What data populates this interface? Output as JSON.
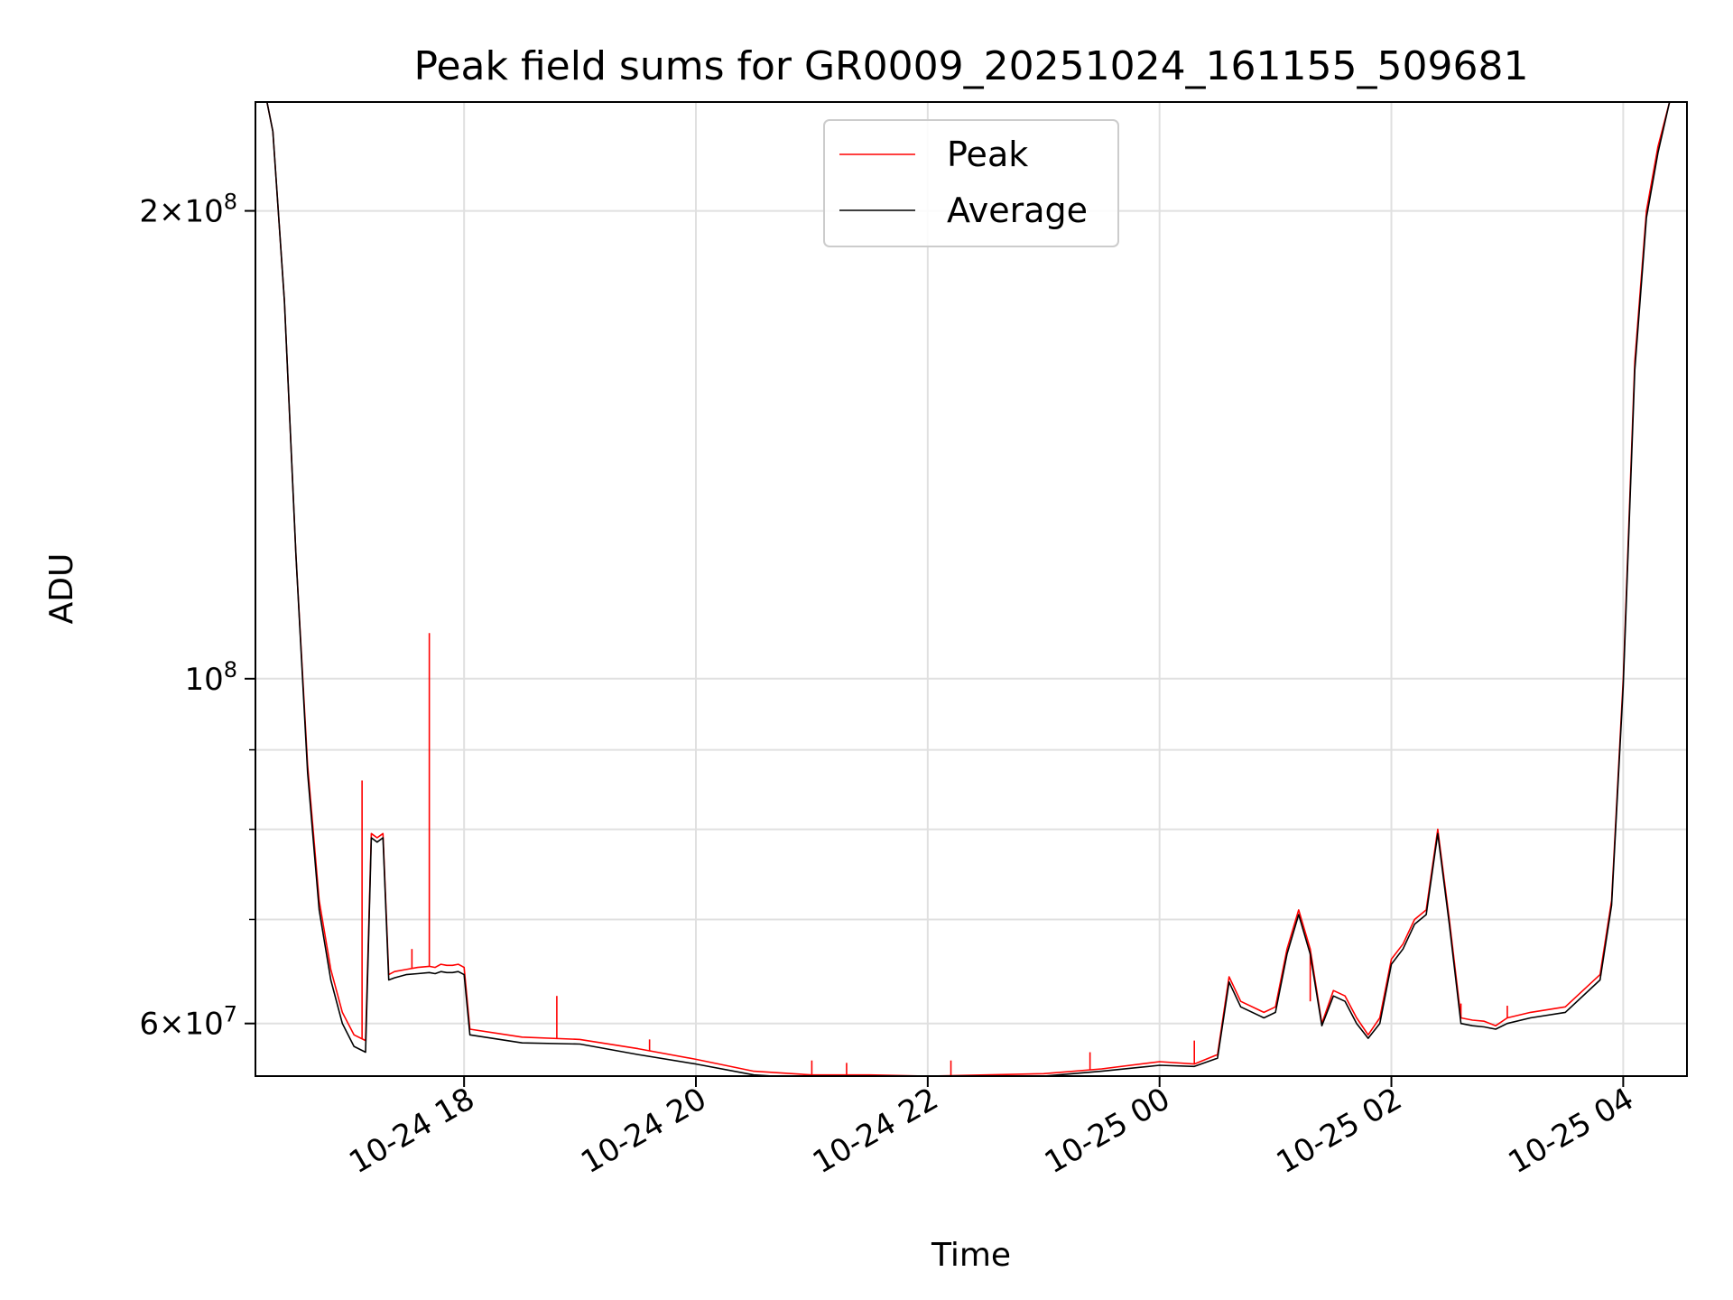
{
  "chart_data": {
    "type": "line",
    "title": "Peak field sums for GR0009_20251024_161155_509681",
    "xlabel": "Time",
    "ylabel": "ADU",
    "yscale": "log",
    "ylim": [
      55500000,
      235000000
    ],
    "x_unit": "hours since 2025-10-24 16:00",
    "xlim": [
      0.2,
      12.55
    ],
    "grid": true,
    "legend_position": "upper center",
    "x_ticks": [
      {
        "value": 2,
        "label": "10-24 18"
      },
      {
        "value": 4,
        "label": "10-24 20"
      },
      {
        "value": 6,
        "label": "10-24 22"
      },
      {
        "value": 8,
        "label": "10-25 00"
      },
      {
        "value": 10,
        "label": "10-25 02"
      },
      {
        "value": 12,
        "label": "10-25 04"
      }
    ],
    "y_major_ticks": [
      {
        "value": 60000000,
        "mantissa": "6",
        "exp": "7"
      },
      {
        "value": 100000000,
        "mantissa": "",
        "exp": "8"
      },
      {
        "value": 200000000,
        "mantissa": "2",
        "exp": "8"
      }
    ],
    "y_minor_ticks": [
      70000000,
      80000000,
      90000000
    ],
    "series": [
      {
        "name": "Peak",
        "color": "#ff0000",
        "x": [
          0.2,
          0.3,
          0.35,
          0.45,
          0.55,
          0.65,
          0.75,
          0.85,
          0.95,
          1.05,
          1.15,
          1.2,
          1.25,
          1.3,
          1.35,
          1.4,
          1.5,
          1.6,
          1.7,
          1.75,
          1.8,
          1.85,
          1.9,
          1.95,
          2.0,
          2.05,
          2.5,
          3.0,
          3.5,
          4.0,
          4.5,
          5.0,
          5.5,
          6.0,
          6.5,
          7.0,
          7.5,
          8.0,
          8.3,
          8.5,
          8.6,
          8.7,
          8.9,
          9.0,
          9.1,
          9.2,
          9.3,
          9.4,
          9.5,
          9.6,
          9.7,
          9.8,
          9.9,
          10.0,
          10.1,
          10.2,
          10.3,
          10.4,
          10.5,
          10.6,
          10.7,
          10.8,
          10.9,
          11.0,
          11.2,
          11.5,
          11.8,
          11.9,
          12.0,
          12.1,
          12.2,
          12.3,
          12.4,
          12.55
        ],
        "y": [
          235000000,
          235000000,
          225000000,
          175000000,
          120000000,
          88000000,
          72000000,
          65000000,
          61000000,
          59000000,
          58500000,
          79500000,
          79000000,
          79500000,
          64500000,
          64800000,
          65000000,
          65200000,
          65300000,
          65200000,
          65500000,
          65400000,
          65400000,
          65500000,
          65200000,
          59500000,
          58800000,
          58600000,
          57800000,
          56900000,
          55900000,
          55600000,
          55600000,
          55500000,
          55600000,
          55700000,
          56100000,
          56700000,
          56500000,
          57300000,
          64300000,
          62000000,
          61000000,
          61500000,
          67000000,
          71000000,
          67000000,
          60000000,
          63000000,
          62500000,
          60500000,
          59000000,
          60500000,
          66000000,
          67500000,
          70000000,
          71000000,
          80000000,
          70000000,
          60500000,
          60300000,
          60200000,
          59800000,
          60500000,
          61000000,
          61500000,
          64500000,
          72000000,
          100000000,
          160000000,
          200000000,
          220000000,
          235000000,
          235000000
        ],
        "spikes": [
          {
            "x": 1.12,
            "y": 86000000
          },
          {
            "x": 1.7,
            "y": 107000000
          },
          {
            "x": 1.55,
            "y": 67000000
          },
          {
            "x": 2.8,
            "y": 62500000
          },
          {
            "x": 3.6,
            "y": 58600000
          },
          {
            "x": 5.0,
            "y": 56800000
          },
          {
            "x": 5.3,
            "y": 56600000
          },
          {
            "x": 6.2,
            "y": 56800000
          },
          {
            "x": 7.4,
            "y": 57500000
          },
          {
            "x": 8.3,
            "y": 58500000
          },
          {
            "x": 9.3,
            "y": 62000000
          },
          {
            "x": 10.6,
            "y": 61800000
          },
          {
            "x": 11.0,
            "y": 61600000
          }
        ]
      },
      {
        "name": "Average",
        "color": "#000000",
        "x": [
          0.2,
          0.3,
          0.35,
          0.45,
          0.55,
          0.65,
          0.75,
          0.85,
          0.95,
          1.05,
          1.15,
          1.2,
          1.25,
          1.3,
          1.35,
          1.4,
          1.5,
          1.6,
          1.7,
          1.75,
          1.8,
          1.85,
          1.9,
          1.95,
          2.0,
          2.05,
          2.5,
          3.0,
          3.5,
          4.0,
          4.5,
          5.0,
          5.5,
          6.0,
          6.5,
          7.0,
          7.5,
          8.0,
          8.3,
          8.5,
          8.6,
          8.7,
          8.9,
          9.0,
          9.1,
          9.2,
          9.3,
          9.4,
          9.5,
          9.6,
          9.7,
          9.8,
          9.9,
          10.0,
          10.1,
          10.2,
          10.3,
          10.4,
          10.5,
          10.6,
          10.7,
          10.8,
          10.9,
          11.0,
          11.2,
          11.5,
          11.8,
          11.9,
          12.0,
          12.1,
          12.2,
          12.3,
          12.4,
          12.55
        ],
        "y": [
          235000000,
          235000000,
          225000000,
          175000000,
          120000000,
          87000000,
          71000000,
          64000000,
          60000000,
          58000000,
          57500000,
          79000000,
          78500000,
          79000000,
          64000000,
          64200000,
          64500000,
          64600000,
          64700000,
          64600000,
          64800000,
          64700000,
          64700000,
          64800000,
          64500000,
          59000000,
          58300000,
          58200000,
          57300000,
          56500000,
          55600000,
          55300000,
          55300000,
          55300000,
          55400000,
          55500000,
          55900000,
          56400000,
          56300000,
          57000000,
          63800000,
          61500000,
          60500000,
          61000000,
          66500000,
          70500000,
          66500000,
          59800000,
          62500000,
          62000000,
          60000000,
          58700000,
          60000000,
          65500000,
          67000000,
          69500000,
          70500000,
          79500000,
          69500000,
          60000000,
          59800000,
          59700000,
          59500000,
          60000000,
          60500000,
          61000000,
          64000000,
          71500000,
          99000000,
          158000000,
          198000000,
          218000000,
          235000000,
          235000000
        ]
      }
    ]
  }
}
